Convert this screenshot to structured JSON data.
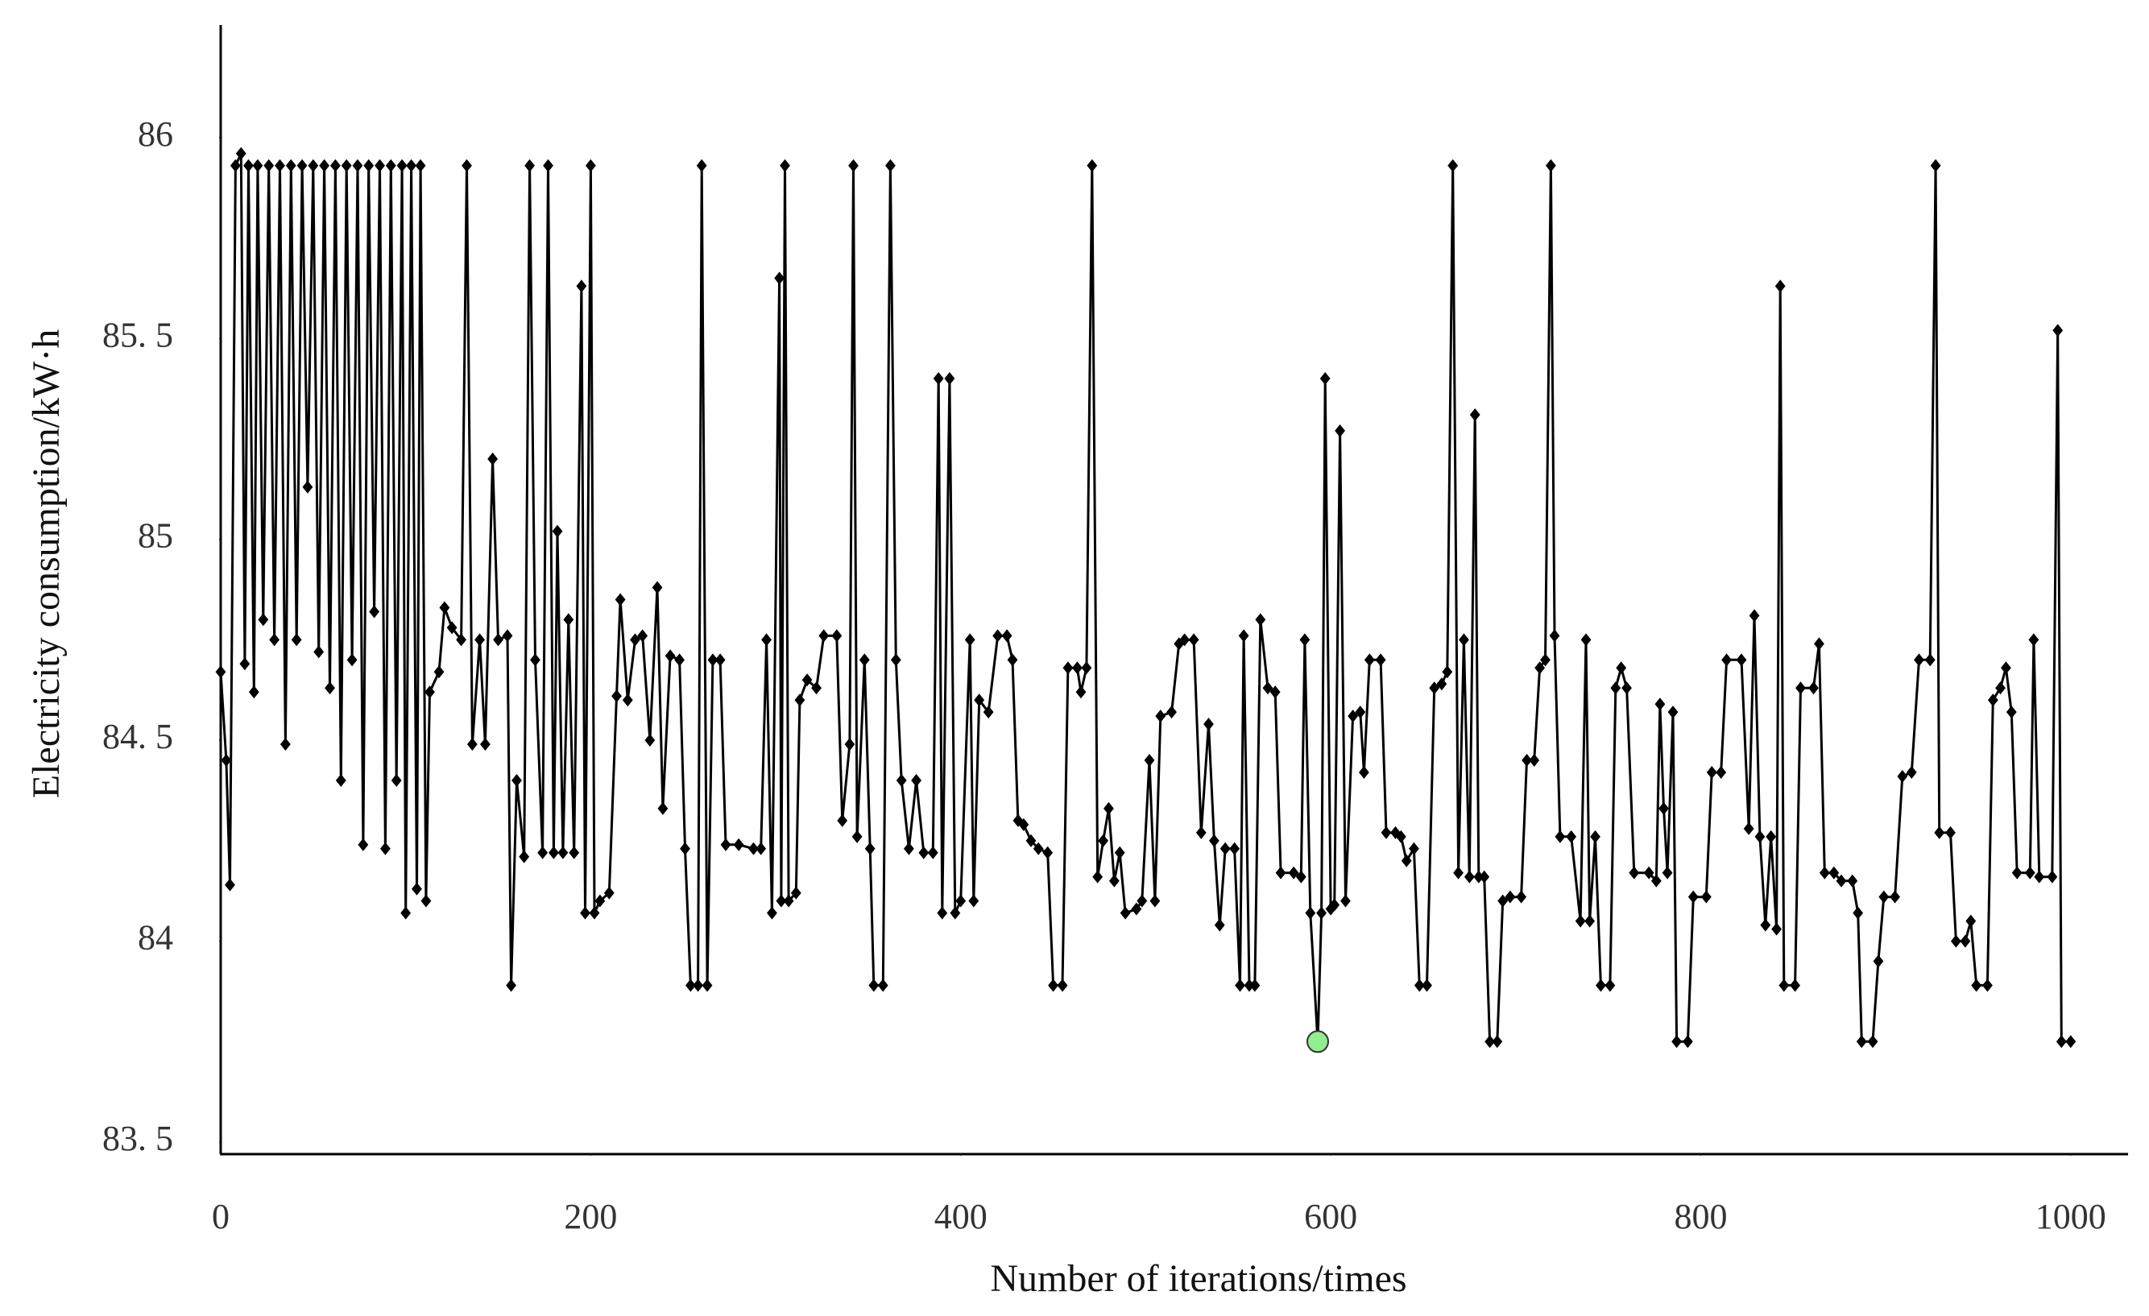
{
  "chart_data": {
    "type": "line",
    "x_label": "Number of iterations/times",
    "y_label": "Electricity consumption/kW·h",
    "color": "#000000",
    "x": [
      0,
      3,
      5,
      8,
      11,
      13,
      15,
      18,
      20,
      23,
      26,
      29,
      32,
      35,
      38,
      41,
      44,
      47,
      50,
      53,
      56,
      59,
      62,
      65,
      68,
      71,
      74,
      77,
      80,
      83,
      86,
      89,
      92,
      95,
      98,
      100,
      103,
      106,
      108,
      111,
      113,
      118,
      121,
      125,
      130,
      133,
      136,
      140,
      143,
      147,
      150,
      155,
      157,
      160,
      164,
      167,
      170,
      174,
      177,
      180,
      182,
      185,
      188,
      191,
      195,
      197,
      200,
      202,
      205,
      210,
      214,
      216,
      220,
      224,
      228,
      232,
      236,
      239,
      243,
      248,
      251,
      254,
      258,
      260,
      263,
      266,
      270,
      273,
      280,
      288,
      292,
      295,
      298,
      302,
      303,
      305,
      307,
      311,
      313,
      317,
      322,
      326,
      333,
      336,
      340,
      342,
      344,
      348,
      351,
      353,
      358,
      362,
      365,
      368,
      372,
      376,
      380,
      385,
      388,
      390,
      394,
      397,
      400,
      405,
      407,
      410,
      415,
      420,
      425,
      428,
      431,
      434,
      438,
      442,
      447,
      450,
      455,
      458,
      463,
      465,
      468,
      471,
      474,
      477,
      480,
      483,
      486,
      489,
      495,
      498,
      502,
      505,
      508,
      514,
      518,
      521,
      526,
      530,
      534,
      537,
      540,
      543,
      548,
      551,
      553,
      556,
      559,
      562,
      566,
      570,
      573,
      580,
      584,
      586,
      589,
      593,
      595,
      597,
      600,
      602,
      605,
      608,
      612,
      616,
      618,
      621,
      627,
      630,
      635,
      638,
      641,
      645,
      648,
      652,
      656,
      660,
      663,
      666,
      669,
      672,
      675,
      678,
      680,
      683,
      686,
      690,
      693,
      697,
      703,
      706,
      710,
      713,
      716,
      719,
      721,
      724,
      730,
      735,
      738,
      740,
      743,
      746,
      751,
      754,
      757,
      760,
      764,
      772,
      776,
      778,
      780,
      782,
      785,
      787,
      793,
      796,
      803,
      806,
      811,
      814,
      822,
      826,
      829,
      832,
      835,
      838,
      841,
      843,
      845,
      851,
      854,
      861,
      864,
      867,
      872,
      876,
      882,
      885,
      887,
      893,
      896,
      899,
      905,
      909,
      914,
      918,
      924,
      927,
      929,
      935,
      938,
      943,
      946,
      949,
      955,
      958,
      962,
      965,
      968,
      971,
      978,
      980,
      983,
      990,
      993,
      995,
      1000
    ],
    "values": [
      84.67,
      84.45,
      84.14,
      85.93,
      85.96,
      84.69,
      85.93,
      84.62,
      85.93,
      84.8,
      85.93,
      84.75,
      85.93,
      84.49,
      85.93,
      84.75,
      85.93,
      85.13,
      85.93,
      84.72,
      85.93,
      84.63,
      85.93,
      84.4,
      85.93,
      84.7,
      85.93,
      84.24,
      85.93,
      84.82,
      85.93,
      84.23,
      85.93,
      84.4,
      85.93,
      84.07,
      85.93,
      84.13,
      85.93,
      84.1,
      84.62,
      84.67,
      84.83,
      84.78,
      84.75,
      85.93,
      84.49,
      84.75,
      84.49,
      85.2,
      84.75,
      84.76,
      83.89,
      84.4,
      84.21,
      85.93,
      84.7,
      84.22,
      85.93,
      84.22,
      85.02,
      84.22,
      84.8,
      84.22,
      85.63,
      84.07,
      85.93,
      84.07,
      84.1,
      84.12,
      84.61,
      84.85,
      84.6,
      84.75,
      84.76,
      84.5,
      84.88,
      84.33,
      84.71,
      84.7,
      84.23,
      83.89,
      83.89,
      85.93,
      83.89,
      84.7,
      84.7,
      84.24,
      84.24,
      84.23,
      84.23,
      84.75,
      84.07,
      85.65,
      84.1,
      85.93,
      84.1,
      84.12,
      84.6,
      84.65,
      84.63,
      84.76,
      84.76,
      84.3,
      84.49,
      85.93,
      84.26,
      84.7,
      84.23,
      83.89,
      83.89,
      85.93,
      84.7,
      84.4,
      84.23,
      84.4,
      84.22,
      84.22,
      85.4,
      84.07,
      85.4,
      84.07,
      84.1,
      84.75,
      84.1,
      84.6,
      84.57,
      84.76,
      84.76,
      84.7,
      84.3,
      84.29,
      84.25,
      84.23,
      84.22,
      83.89,
      83.89,
      84.68,
      84.68,
      84.62,
      84.68,
      85.93,
      84.16,
      84.25,
      84.33,
      84.15,
      84.22,
      84.07,
      84.08,
      84.1,
      84.45,
      84.1,
      84.56,
      84.57,
      84.74,
      84.75,
      84.75,
      84.27,
      84.54,
      84.25,
      84.04,
      84.23,
      84.23,
      83.89,
      84.76,
      83.89,
      83.89,
      84.8,
      84.63,
      84.62,
      84.17,
      84.17,
      84.16,
      84.75,
      84.07,
      83.75,
      84.07,
      85.4,
      84.08,
      84.09,
      85.27,
      84.1,
      84.56,
      84.57,
      84.42,
      84.7,
      84.7,
      84.27,
      84.27,
      84.26,
      84.2,
      84.23,
      83.89,
      83.89,
      84.63,
      84.64,
      84.67,
      85.93,
      84.17,
      84.75,
      84.16,
      85.31,
      84.16,
      84.16,
      83.75,
      83.75,
      84.1,
      84.11,
      84.11,
      84.45,
      84.45,
      84.68,
      84.7,
      85.93,
      84.76,
      84.26,
      84.26,
      84.05,
      84.75,
      84.05,
      84.26,
      83.89,
      83.89,
      84.63,
      84.68,
      84.63,
      84.17,
      84.17,
      84.15,
      84.59,
      84.33,
      84.17,
      84.57,
      83.75,
      83.75,
      84.11,
      84.11,
      84.42,
      84.42,
      84.7,
      84.7,
      84.28,
      84.81,
      84.26,
      84.04,
      84.26,
      84.03,
      85.63,
      83.89,
      83.89,
      84.63,
      84.63,
      84.74,
      84.17,
      84.17,
      84.15,
      84.15,
      84.07,
      83.75,
      83.75,
      83.95,
      84.11,
      84.11,
      84.41,
      84.42,
      84.7,
      84.7,
      85.93,
      84.27,
      84.27,
      84.0,
      84.0,
      84.05,
      83.89,
      83.89,
      84.6,
      84.63,
      84.68,
      84.57,
      84.17,
      84.17,
      84.75,
      84.16,
      84.16,
      85.52,
      83.75,
      83.75
    ],
    "highlight": {
      "x": 593,
      "value": 83.75,
      "color": "#90ee90"
    },
    "xlim": [
      0,
      1031
    ],
    "ylim": [
      83.47,
      86.28
    ],
    "xticks": [
      0,
      200,
      400,
      600,
      800,
      1000
    ],
    "yticks": [
      {
        "value": 83.5,
        "label": "83. 5"
      },
      84,
      {
        "value": 84.5,
        "label": "84. 5"
      },
      85,
      {
        "value": 85.5,
        "label": "85. 5"
      },
      86
    ],
    "grid": false
  }
}
